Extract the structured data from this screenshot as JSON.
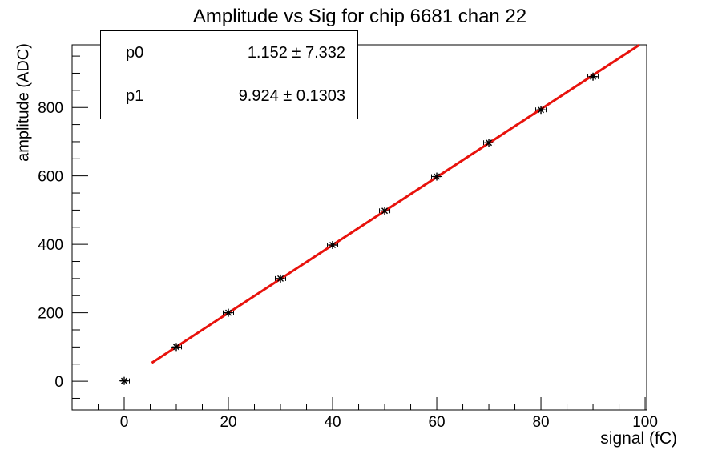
{
  "title": "Amplitude vs Sig for chip 6681 chan 22",
  "colors": {
    "background": "#ffffff",
    "frame": "#000000",
    "text": "#000000",
    "fit_line": "#e8120c",
    "marker": "#000000"
  },
  "stats_box": {
    "rows": [
      {
        "label": "p0",
        "value": "1.152 ± 7.332"
      },
      {
        "label": "p1",
        "value": "9.924 ± 0.1303"
      }
    ]
  },
  "axes": {
    "x_title": "signal (fC)",
    "y_title": "amplitude (ADC)"
  },
  "chart_data": {
    "type": "scatter",
    "title": "Amplitude vs Sig for chip 6681 chan 22",
    "xlabel": "signal (fC)",
    "ylabel": "amplitude (ADC)",
    "xlim": [
      -10,
      100.3
    ],
    "ylim": [
      -84,
      983
    ],
    "x_major_ticks": [
      0,
      20,
      40,
      60,
      80,
      100
    ],
    "x_minor_step": 5,
    "y_major_ticks": [
      0,
      200,
      400,
      600,
      800
    ],
    "y_minor_step": 50,
    "grid": false,
    "legend": "none",
    "points": {
      "x": [
        0,
        10,
        20,
        30,
        40,
        50,
        60,
        70,
        80,
        90
      ],
      "y": [
        1,
        100,
        200,
        300,
        398,
        498,
        598,
        697,
        793,
        890
      ],
      "xerr": 1
    },
    "fit": {
      "type": "pol1",
      "p0": 1.152,
      "p0_err": 7.332,
      "p1": 9.924,
      "p1_err": 0.1303,
      "draw_range": [
        5.3,
        98.9
      ]
    }
  }
}
